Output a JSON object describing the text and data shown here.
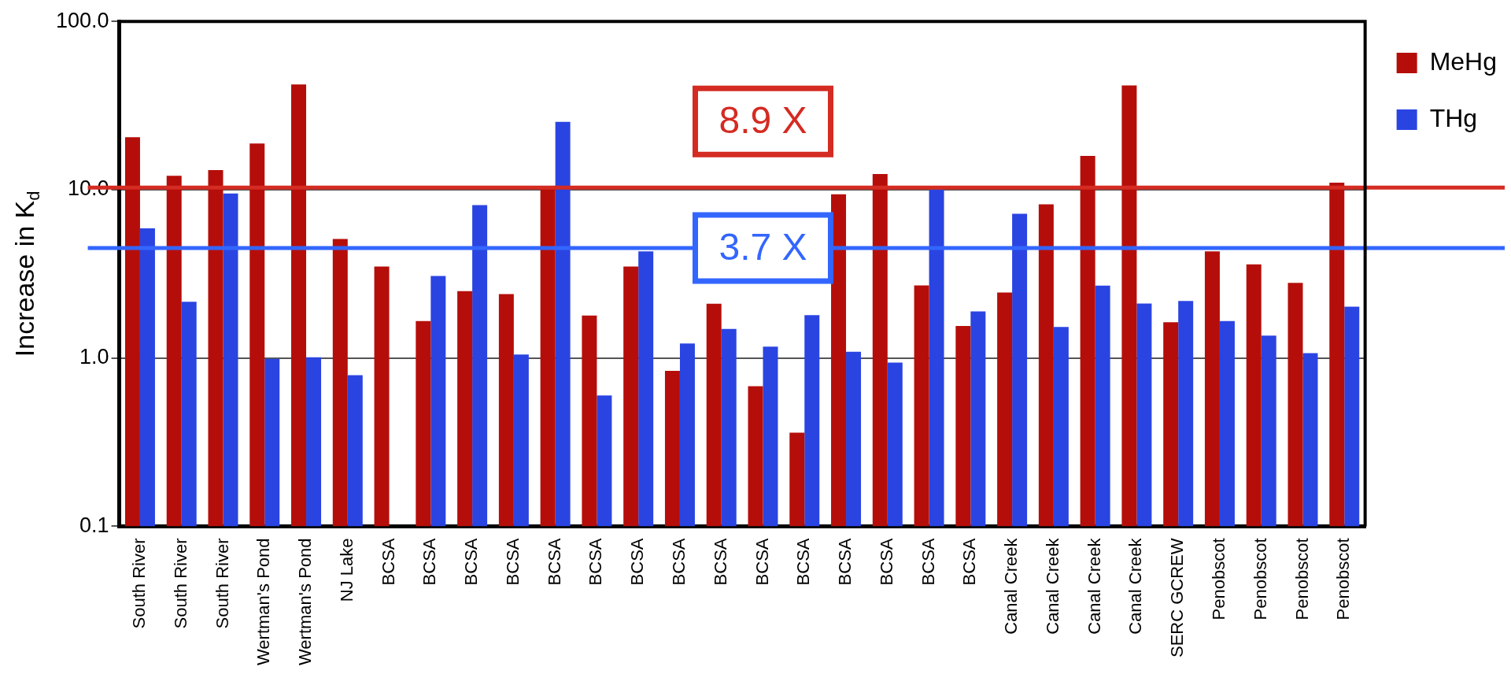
{
  "chart_data": {
    "type": "bar",
    "ylabel": "Increase in K$_{d}$",
    "log": "y",
    "ylim": [
      0.1,
      100
    ],
    "yticks": [
      0.1,
      {
        "value": 1,
        "label": "1.0"
      },
      {
        "value": 10,
        "label": "10.0"
      },
      {
        "value": 100,
        "label": "100.0"
      }
    ],
    "grid": "y",
    "legend": "top right",
    "categories": [
      "South River",
      "South River",
      "South River",
      "Wertman's Pond",
      "Wertman's Pond",
      "NJ Lake",
      "BCSA",
      "BCSA",
      "BCSA",
      "BCSA",
      "BCSA",
      "BCSA",
      "BCSA",
      "BCSA",
      "BCSA",
      "BCSA",
      "BCSA",
      "BCSA",
      "BCSA",
      "BCSA",
      "BCSA",
      "Canal Creek",
      "Canal Creek",
      "Canal Creek",
      "Canal Creek",
      "SERC GCREW",
      "Penobscot",
      "Penobscot",
      "Penobscot",
      "Penobscot"
    ],
    "series": [
      {
        "name": "MeHg",
        "color": "#b50e0a",
        "values": [
          20.5,
          12.1,
          13.1,
          18.8,
          42.2,
          5.1,
          3.5,
          1.66,
          2.5,
          2.4,
          10.2,
          1.79,
          3.5,
          0.84,
          2.1,
          0.68,
          0.36,
          9.4,
          12.4,
          2.7,
          1.55,
          2.45,
          8.2,
          15.9,
          41.6,
          1.63,
          4.3,
          3.6,
          2.8,
          11.0
        ]
      },
      {
        "name": "THg",
        "color": "#2a44e2",
        "values": [
          5.9,
          2.16,
          9.5,
          0.99,
          1.01,
          0.79,
          null,
          3.07,
          8.1,
          1.05,
          25.3,
          0.6,
          4.3,
          1.22,
          1.49,
          1.17,
          1.8,
          1.09,
          0.94,
          10.0,
          1.89,
          7.2,
          1.53,
          2.69,
          2.11,
          2.18,
          1.66,
          1.36,
          1.07,
          2.02
        ]
      }
    ],
    "ref_lines": [
      {
        "axis": "y",
        "value": 10.3,
        "label": "8.9 X",
        "color": "#d42b22"
      },
      {
        "axis": "y",
        "value": 4.5,
        "label": "3.7 X",
        "color": "#3366ff"
      }
    ]
  }
}
